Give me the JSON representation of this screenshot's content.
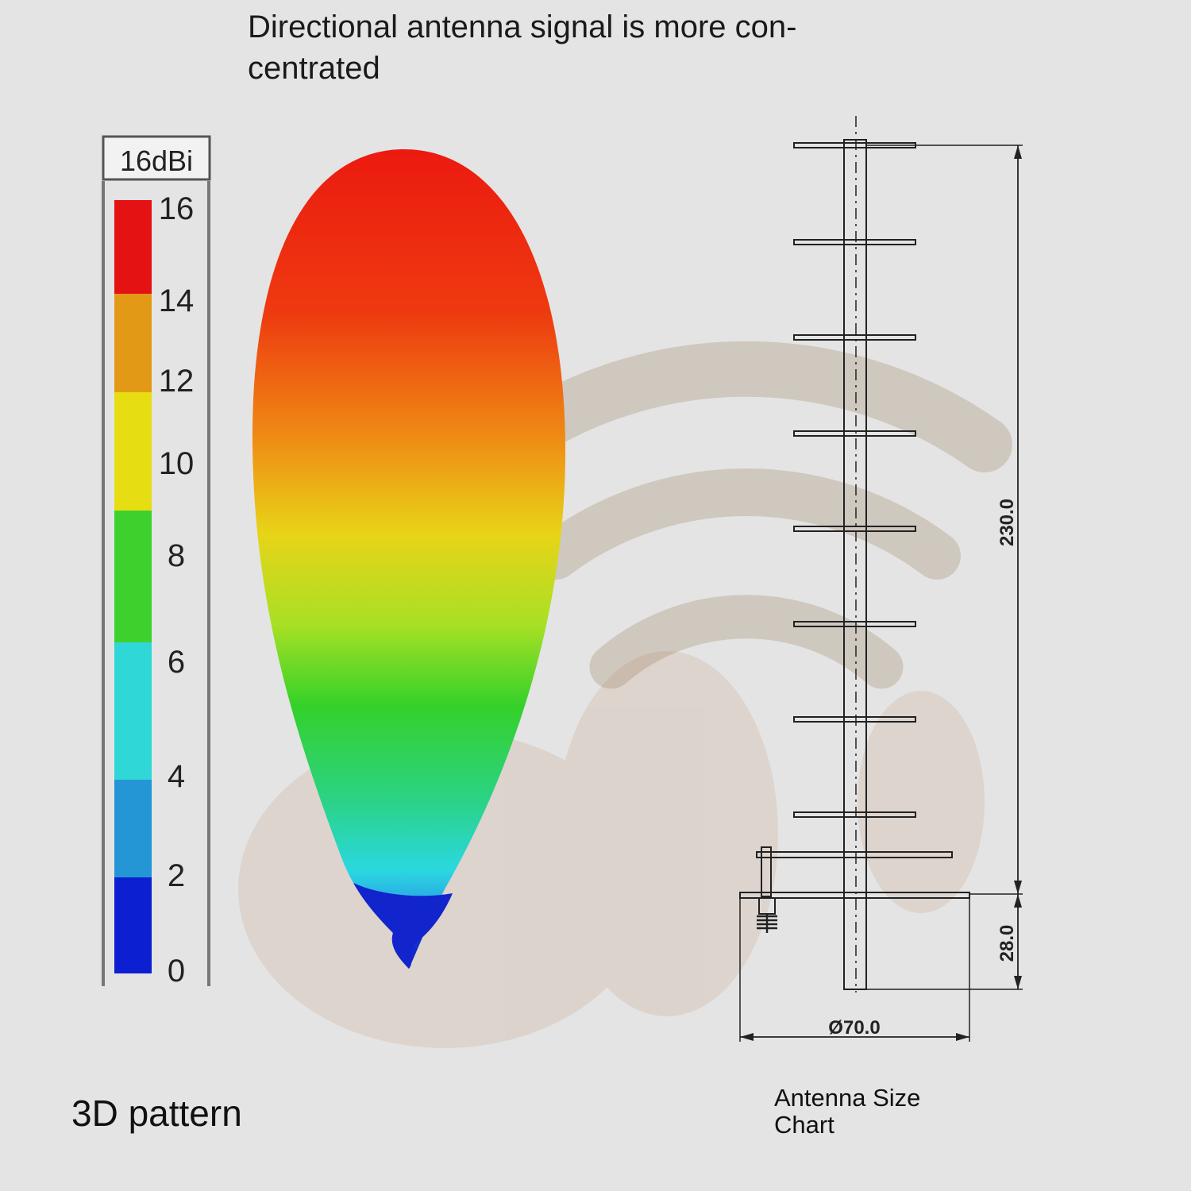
{
  "headline": {
    "line1": "Directional antenna signal is more con-",
    "line2": "centrated"
  },
  "scale": {
    "header": "16dBi",
    "ticks": [
      "16",
      "14",
      "12",
      "10",
      "8",
      "6",
      "4",
      "2",
      "0"
    ],
    "bands": [
      {
        "color": "#e41212"
      },
      {
        "color": "#e29a16"
      },
      {
        "color": "#e6de12"
      },
      {
        "color": "#3ed12e"
      },
      {
        "color": "#2fd8d6"
      },
      {
        "color": "#2496d6"
      },
      {
        "color": "#0c20d2"
      }
    ]
  },
  "pattern_caption": "3D pattern",
  "drawing": {
    "height_label": "230.0",
    "base_label": "28.0",
    "diameter_label": "Ø70.0",
    "caption_line1": "Antenna Size",
    "caption_line2": "Chart"
  },
  "colors": {
    "background": "#e4e4e4",
    "drawing_line": "#222222"
  }
}
